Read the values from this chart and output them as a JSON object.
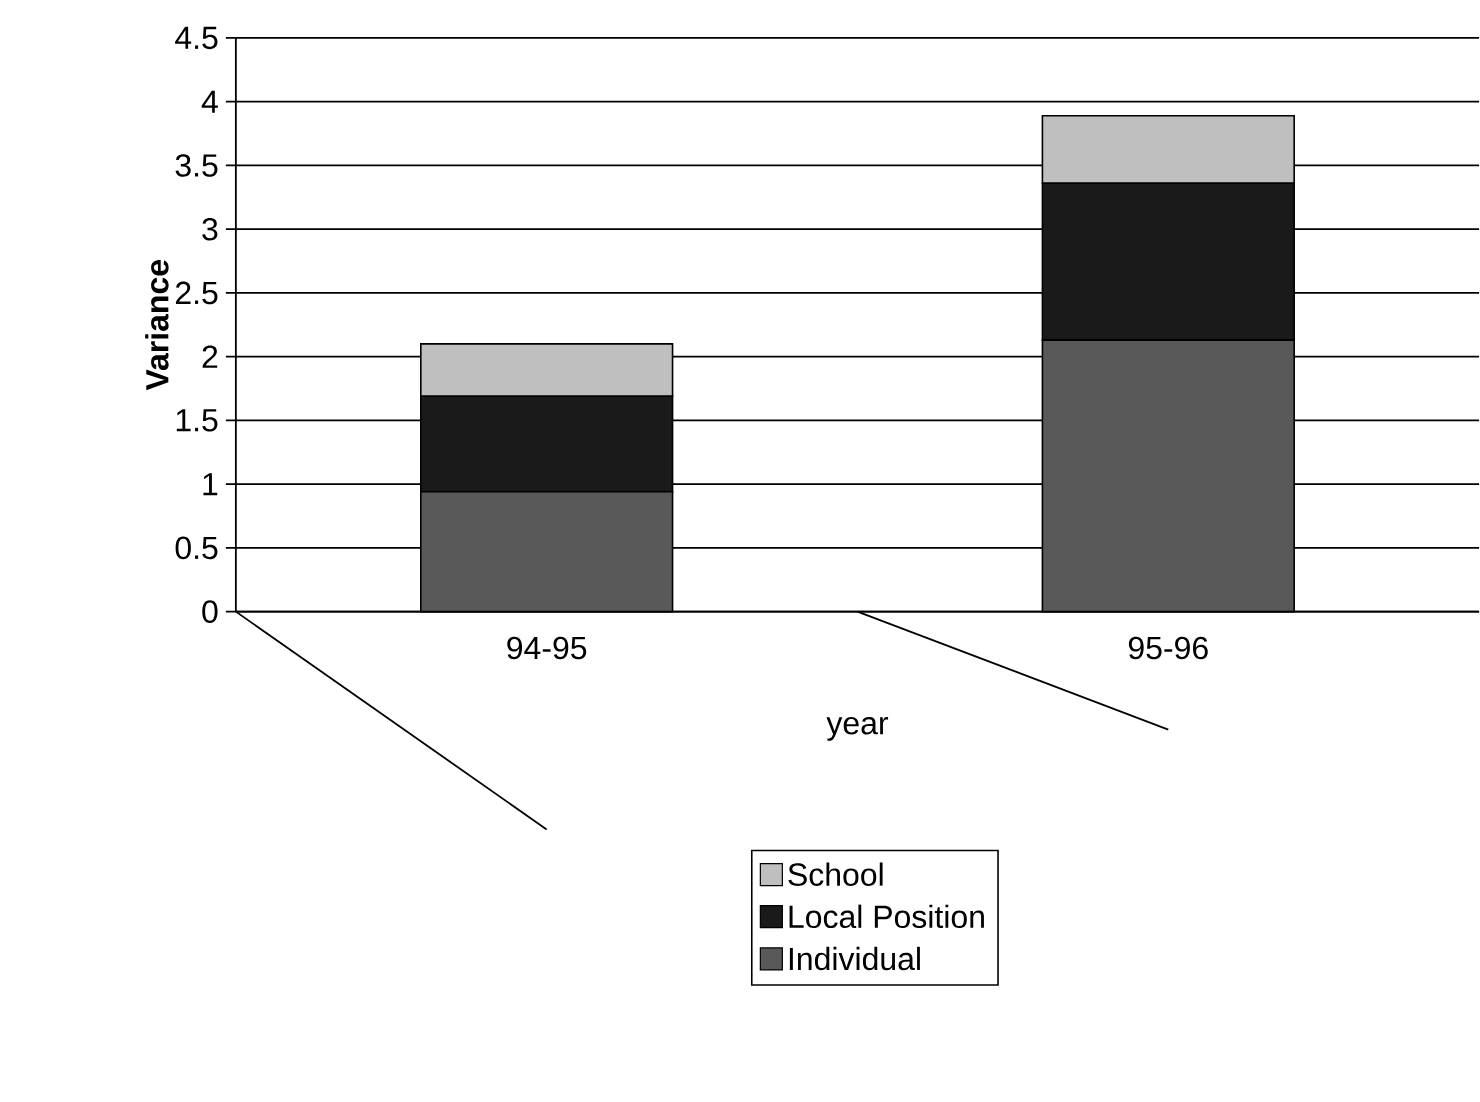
{
  "chart_data": {
    "type": "bar",
    "stacked": true,
    "xlabel": "year",
    "ylabel": "Variance",
    "categories": [
      "94-95",
      "95-96"
    ],
    "series": [
      {
        "name": "Individual",
        "color": "#595959",
        "values": [
          0.94,
          2.13
        ]
      },
      {
        "name": "Local Position",
        "color": "#1a1a1a",
        "values": [
          0.75,
          1.23
        ]
      },
      {
        "name": "School",
        "color": "#bfbfbf",
        "values": [
          0.41,
          0.53
        ]
      }
    ],
    "ylim": [
      0,
      4.5
    ],
    "yticks": [
      0,
      0.5,
      1,
      1.5,
      2,
      2.5,
      3,
      3.5,
      4,
      4.5
    ],
    "grid": "y",
    "legend": "bottom"
  }
}
